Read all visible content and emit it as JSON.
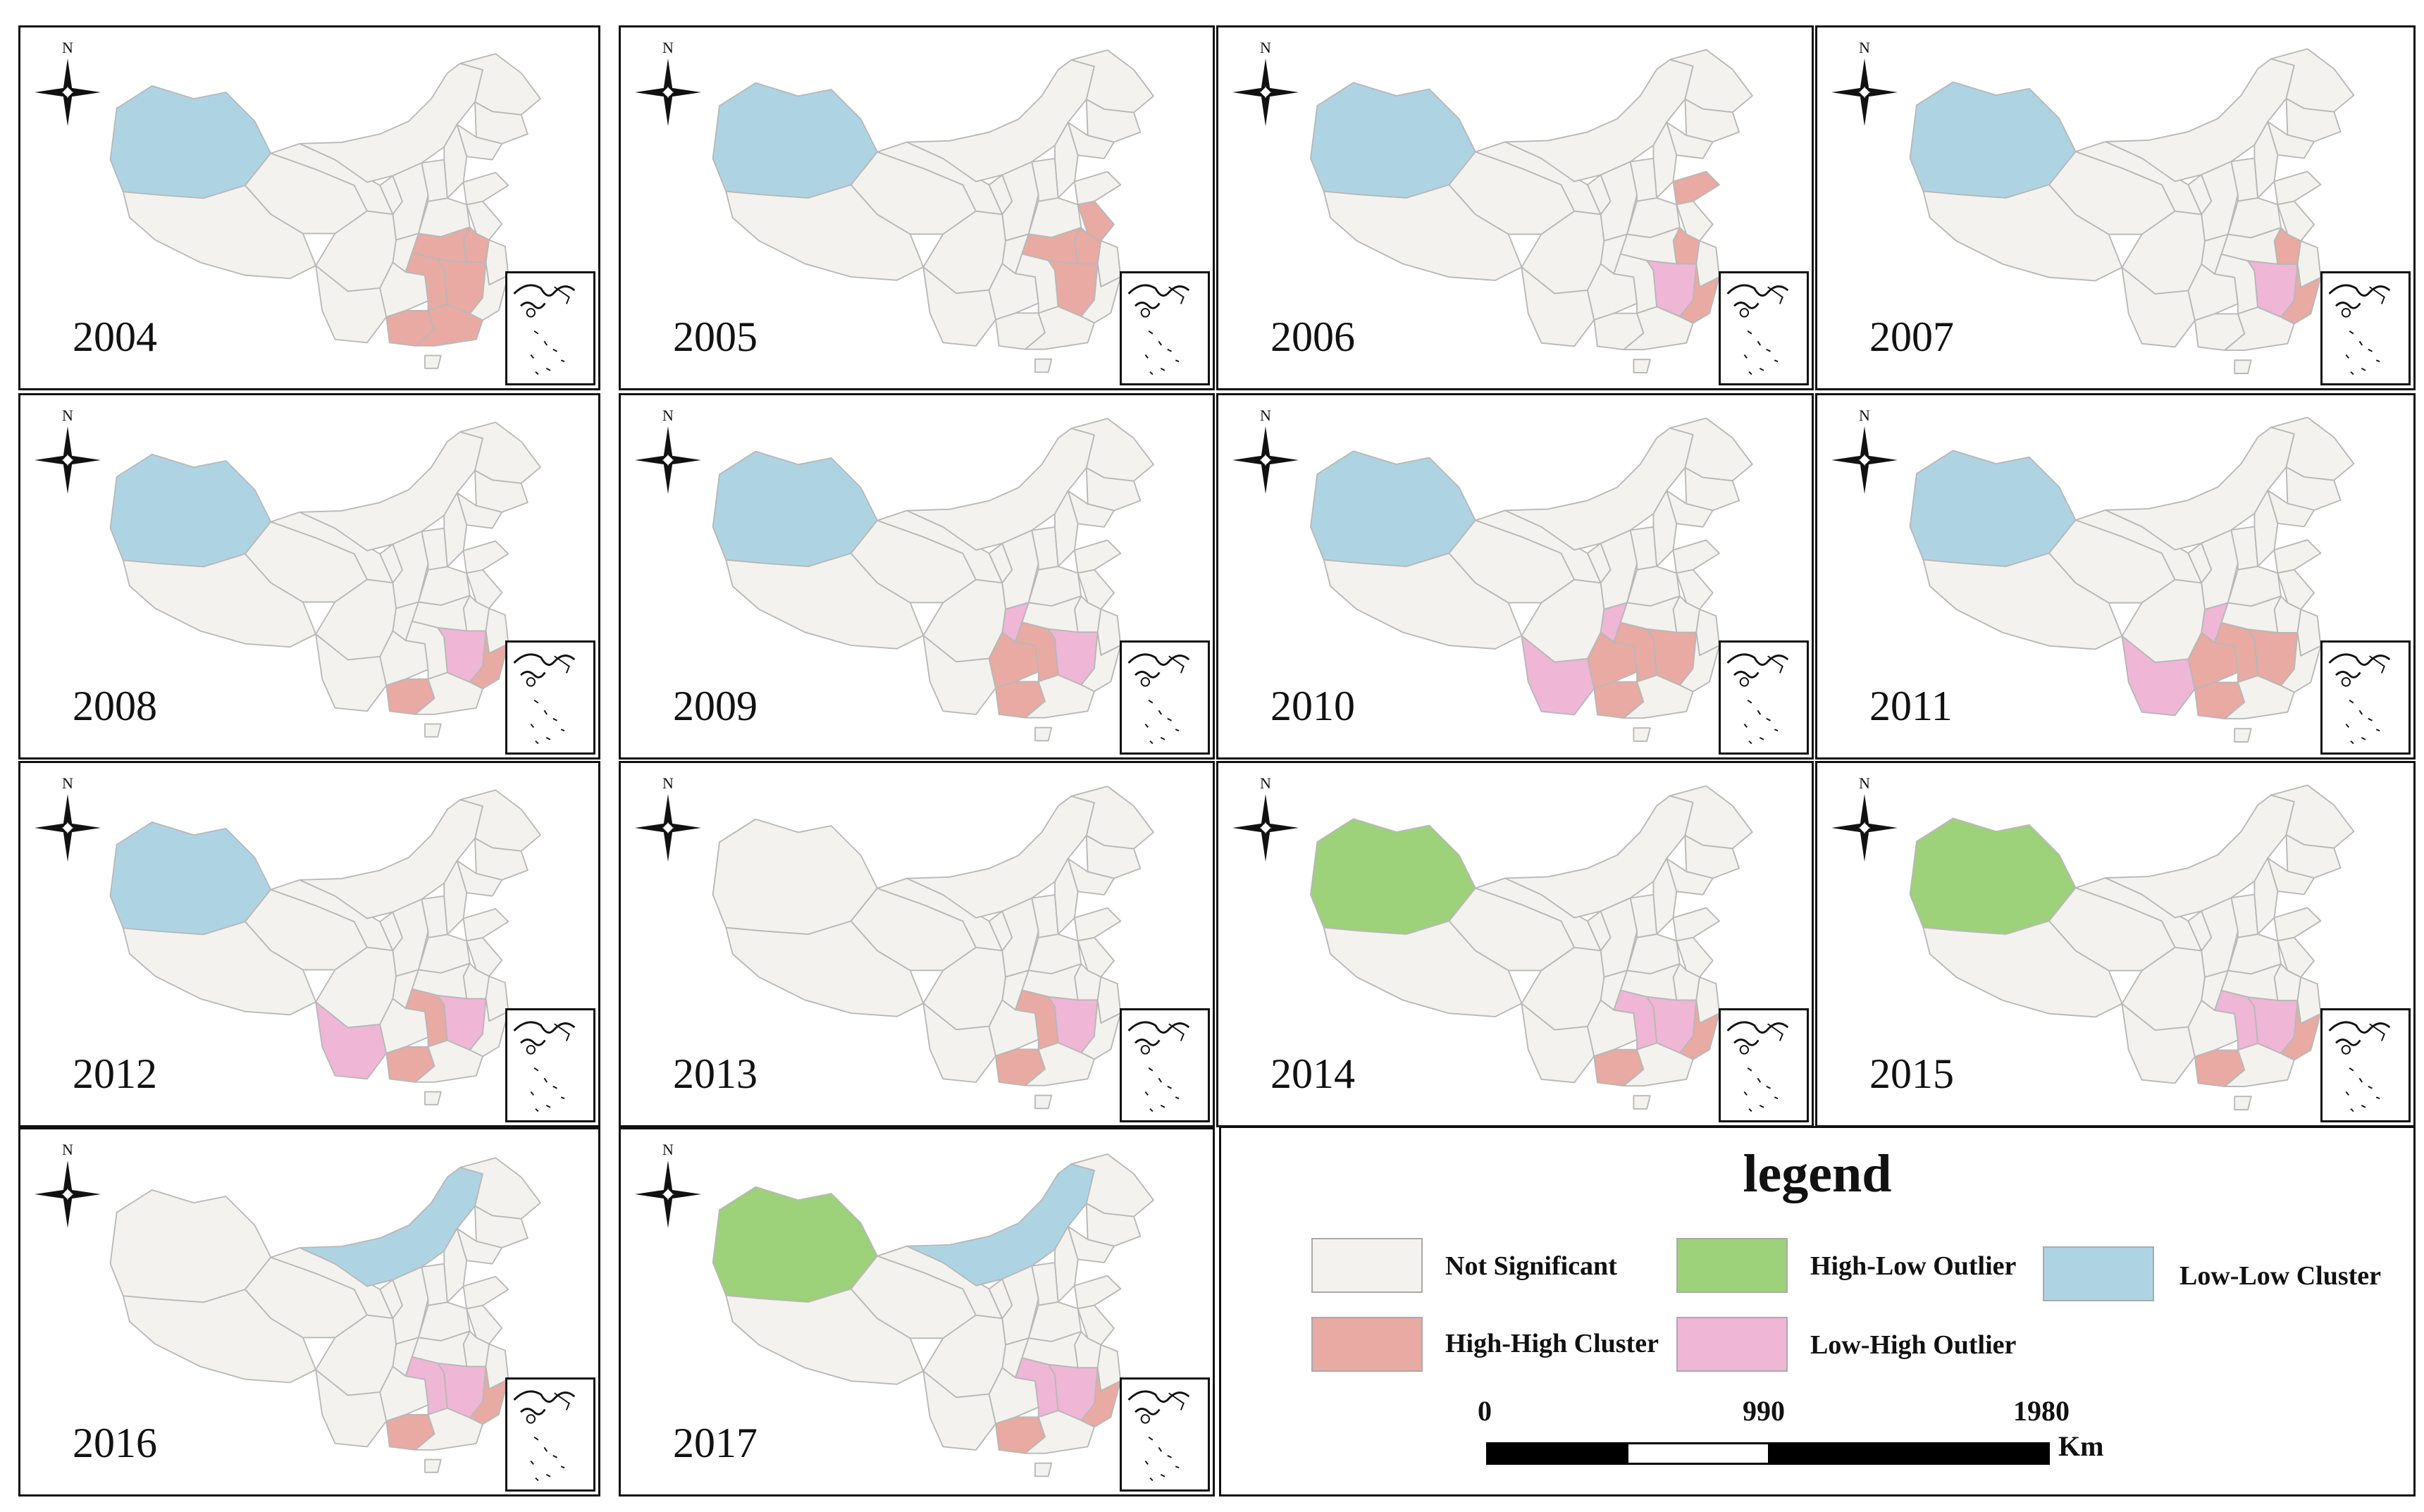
{
  "colors": {
    "not_significant": "#f3f2ee",
    "high_high": "#e8aaa3",
    "low_high": "#efb6d6",
    "high_low": "#9dd17a",
    "low_low": "#aed4e4",
    "border": "#b8b8b8",
    "frame": "#111111"
  },
  "panels": [
    {
      "year": "2004",
      "ll": [
        "xinjiang"
      ],
      "hh": [
        "hunan",
        "jiangxi",
        "guangxi",
        "guangdong",
        "hubei",
        "anhui"
      ],
      "lh": [],
      "hl": []
    },
    {
      "year": "2005",
      "ll": [
        "xinjiang"
      ],
      "hh": [
        "anhui",
        "jiangsu",
        "jiangxi",
        "hubei"
      ],
      "lh": [],
      "hl": []
    },
    {
      "year": "2006",
      "ll": [
        "xinjiang"
      ],
      "hh": [
        "shandong",
        "anhui",
        "fujian"
      ],
      "lh": [
        "jiangxi"
      ],
      "hl": []
    },
    {
      "year": "2007",
      "ll": [
        "xinjiang"
      ],
      "hh": [
        "anhui",
        "fujian"
      ],
      "lh": [
        "jiangxi"
      ],
      "hl": []
    },
    {
      "year": "2008",
      "ll": [
        "xinjiang"
      ],
      "hh": [
        "guangxi",
        "fujian"
      ],
      "lh": [
        "jiangxi"
      ],
      "hl": []
    },
    {
      "year": "2009",
      "ll": [
        "xinjiang"
      ],
      "hh": [
        "hunan",
        "guangxi",
        "guizhou"
      ],
      "lh": [
        "jiangxi",
        "chongqing"
      ],
      "hl": []
    },
    {
      "year": "2010",
      "ll": [
        "xinjiang"
      ],
      "hh": [
        "hunan",
        "guangxi",
        "guizhou",
        "jiangxi"
      ],
      "lh": [
        "yunnan",
        "chongqing"
      ],
      "hl": []
    },
    {
      "year": "2011",
      "ll": [
        "xinjiang"
      ],
      "hh": [
        "hunan",
        "guangxi",
        "guizhou",
        "jiangxi"
      ],
      "lh": [
        "yunnan",
        "chongqing"
      ],
      "hl": []
    },
    {
      "year": "2012",
      "ll": [
        "xinjiang"
      ],
      "hh": [
        "hunan",
        "guangxi"
      ],
      "lh": [
        "yunnan",
        "jiangxi"
      ],
      "hl": []
    },
    {
      "year": "2013",
      "ll": [],
      "hh": [
        "hunan",
        "guangxi"
      ],
      "lh": [
        "jiangxi"
      ],
      "hl": []
    },
    {
      "year": "2014",
      "ll": [],
      "hh": [
        "guangxi",
        "fujian"
      ],
      "lh": [
        "hunan",
        "jiangxi"
      ],
      "hl": [
        "xinjiang"
      ]
    },
    {
      "year": "2015",
      "ll": [],
      "hh": [
        "guangxi",
        "fujian"
      ],
      "lh": [
        "hunan",
        "jiangxi"
      ],
      "hl": [
        "xinjiang"
      ]
    },
    {
      "year": "2016",
      "ll": [
        "innermongolia"
      ],
      "hh": [
        "guangxi",
        "fujian"
      ],
      "lh": [
        "hunan",
        "jiangxi"
      ],
      "hl": []
    },
    {
      "year": "2017",
      "ll": [
        "innermongolia"
      ],
      "hh": [
        "guangxi",
        "fujian"
      ],
      "lh": [
        "hunan",
        "jiangxi"
      ],
      "hl": [
        "xinjiang"
      ]
    }
  ],
  "north_label": "N",
  "legend": {
    "title": "legend",
    "items": {
      "not_significant": "Not Significant",
      "high_low": "High-Low Outlier",
      "low_low": "Low-Low Cluster",
      "high_high": "High-High Cluster",
      "low_high": "Low-High Outlier"
    },
    "scale": {
      "ticks": [
        "0",
        "990",
        "1980"
      ],
      "unit": "Km"
    }
  }
}
